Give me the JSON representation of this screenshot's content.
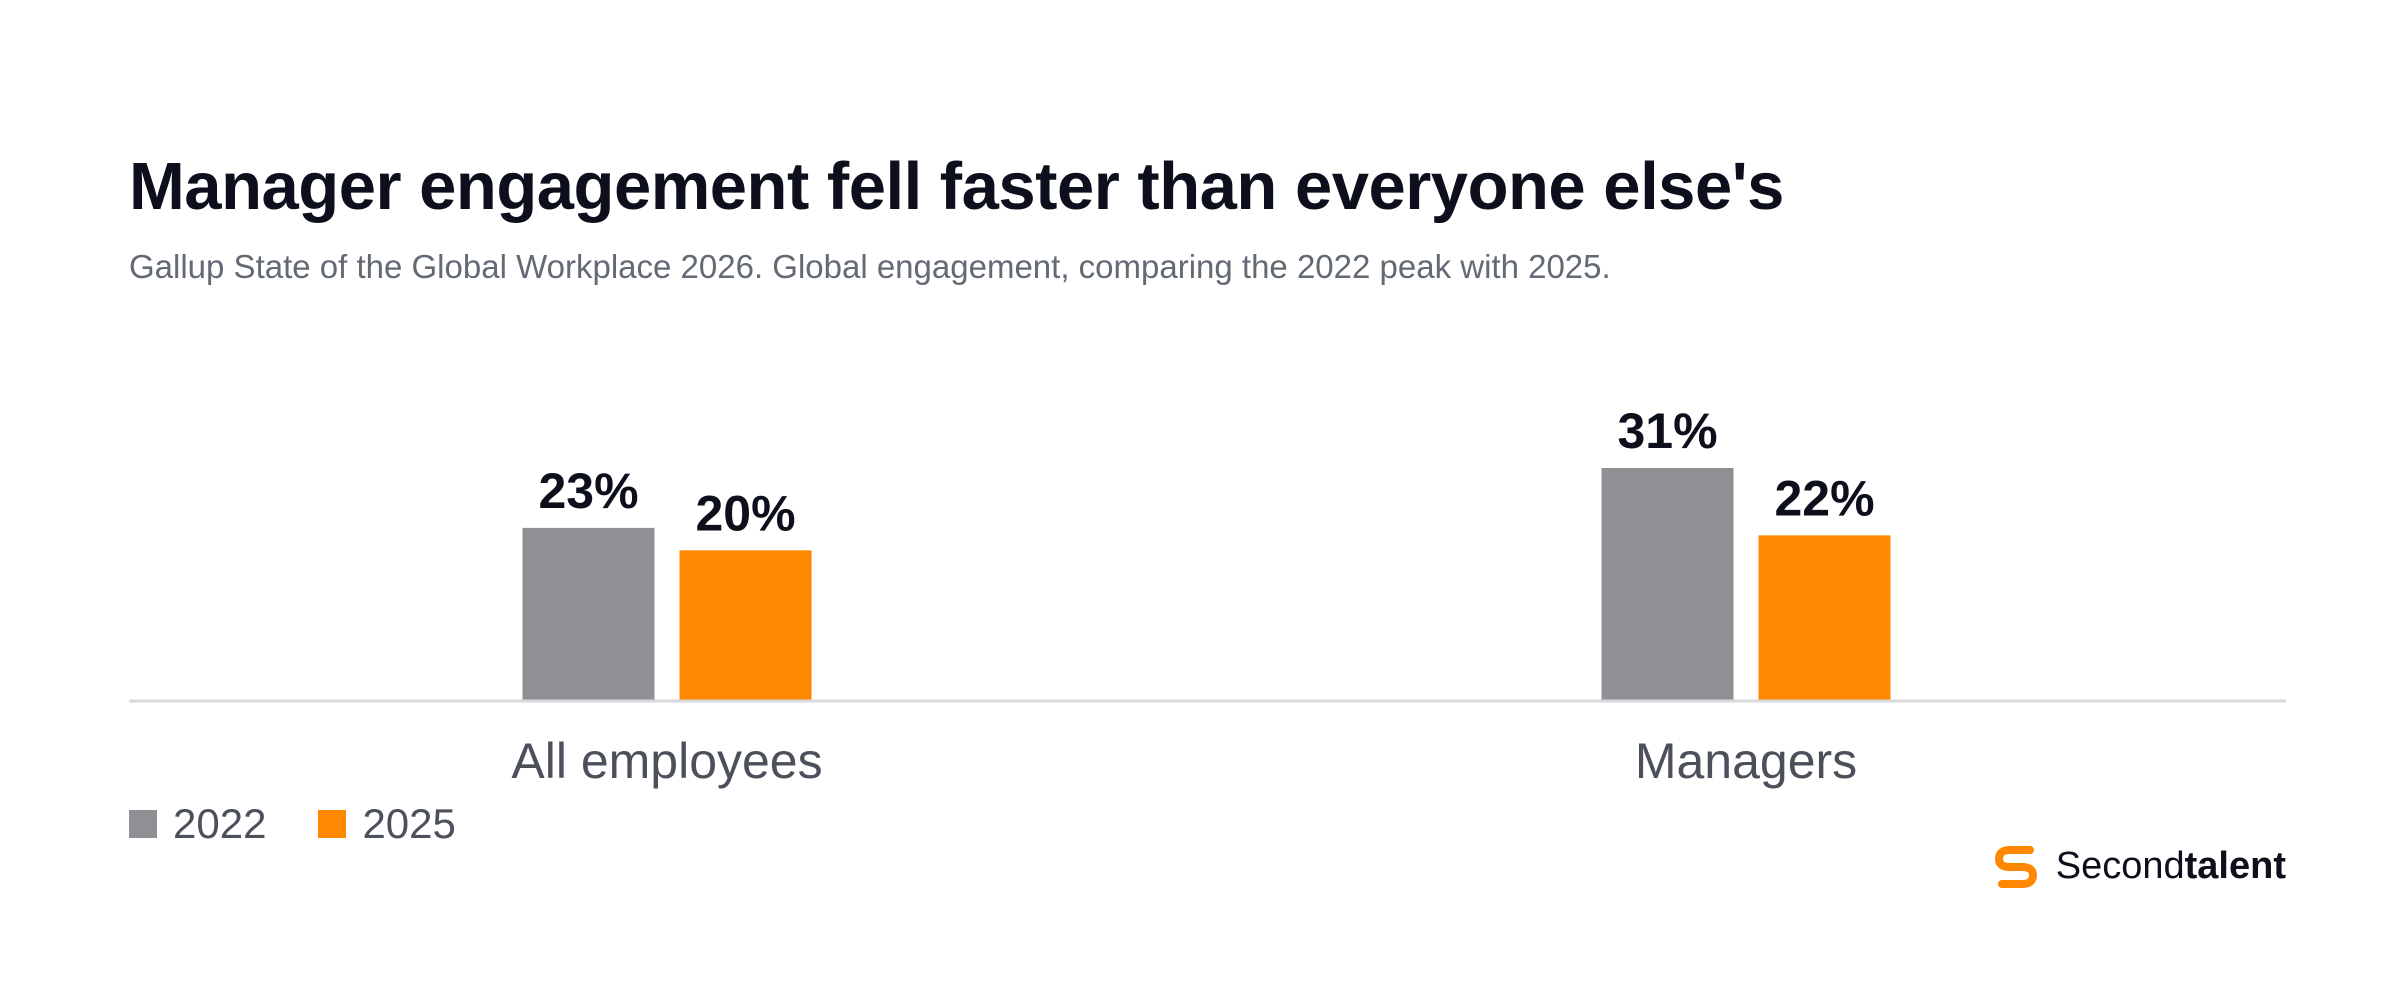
{
  "header": {
    "title": "Manager engagement fell faster than everyone else's",
    "subtitle": "Gallup State of the Global Workplace 2026. Global engagement, comparing the 2022 peak with 2025."
  },
  "chart_data": {
    "type": "bar",
    "categories": [
      "All employees",
      "Managers"
    ],
    "series": [
      {
        "name": "2022",
        "values": [
          23,
          31
        ],
        "labels": [
          "23%",
          "31%"
        ],
        "color": "#8f9094"
      },
      {
        "name": "2025",
        "values": [
          20,
          22
        ],
        "labels": [
          "20%",
          "22%"
        ],
        "color": "#ff8800"
      }
    ],
    "ylim": [
      0,
      31
    ],
    "grid": false,
    "legend": "bottom-left"
  },
  "brand": {
    "name_regular": "Second",
    "name_bold": "talent",
    "accent": "#ff8800"
  }
}
